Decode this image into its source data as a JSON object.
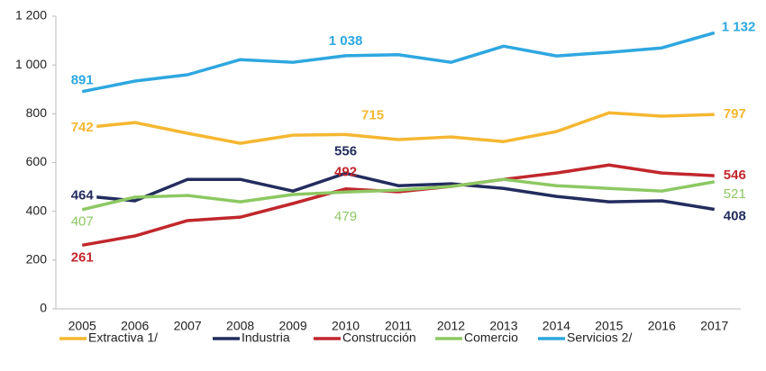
{
  "chart_data": {
    "type": "line",
    "categories": [
      "2005",
      "2006",
      "2007",
      "2008",
      "2009",
      "2010",
      "2011",
      "2012",
      "2013",
      "2014",
      "2015",
      "2016",
      "2017"
    ],
    "ylim": [
      0,
      1200
    ],
    "yticks": [
      0,
      200,
      400,
      600,
      800,
      {
        "value": 1000,
        "label": "1 000"
      },
      {
        "value": 1200,
        "label": "1 200"
      }
    ],
    "legend": "bottom",
    "series": [
      {
        "name": "Extractiva 1/",
        "color": "#f5b731",
        "values": [
          742,
          764,
          720,
          679,
          712,
          715,
          694,
          705,
          686,
          727,
          804,
          790,
          797
        ],
        "value_labels": [
          "742",
          null,
          null,
          null,
          null,
          "715",
          null,
          null,
          null,
          null,
          null,
          null,
          "797"
        ]
      },
      {
        "name": "Industria",
        "color": "#232c5e",
        "values": [
          464,
          443,
          531,
          531,
          483,
          556,
          505,
          513,
          494,
          461,
          439,
          443,
          408
        ],
        "value_labels": [
          "464",
          null,
          null,
          null,
          null,
          "556",
          null,
          null,
          null,
          null,
          null,
          null,
          "408"
        ]
      },
      {
        "name": "Construcción",
        "color": "#c1272d",
        "values": [
          261,
          299,
          362,
          376,
          432,
          492,
          480,
          502,
          531,
          557,
          590,
          557,
          546
        ],
        "value_labels": [
          "261",
          null,
          null,
          null,
          null,
          "492",
          null,
          null,
          null,
          null,
          null,
          null,
          "546"
        ]
      },
      {
        "name": "Comercio",
        "color": "#8dc863",
        "values": [
          407,
          458,
          465,
          439,
          469,
          479,
          487,
          502,
          531,
          505,
          494,
          483,
          521
        ],
        "value_labels": [
          "407",
          null,
          null,
          null,
          null,
          "479",
          null,
          null,
          null,
          null,
          null,
          null,
          "521"
        ]
      },
      {
        "name": "Servicios 2/",
        "color": "#2ea7e0",
        "values": [
          891,
          934,
          960,
          1022,
          1011,
          1038,
          1042,
          1011,
          1077,
          1037,
          1052,
          1070,
          1132
        ],
        "value_labels": [
          "891",
          null,
          null,
          null,
          null,
          "1 038",
          null,
          null,
          null,
          null,
          null,
          null,
          "1 132"
        ]
      }
    ]
  }
}
